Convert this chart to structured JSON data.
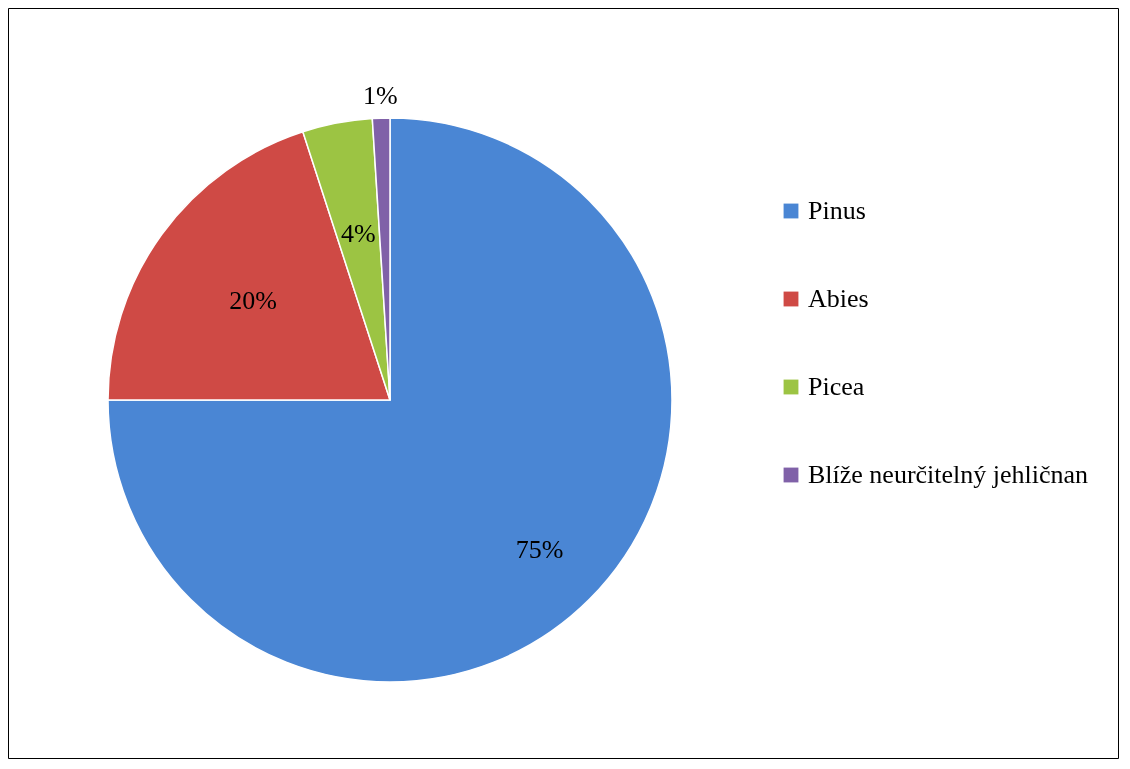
{
  "chart_data": {
    "type": "pie",
    "categories": [
      "Pinus",
      "Abies",
      "Picea",
      "Blíže neurčitelný jehličnan"
    ],
    "values": [
      75,
      20,
      4,
      1
    ],
    "colors": [
      "#4a86d4",
      "#cf4a45",
      "#9cc443",
      "#8061a8"
    ],
    "value_labels": [
      "75%",
      "20%",
      "4%",
      "1%"
    ],
    "legend": "right"
  }
}
